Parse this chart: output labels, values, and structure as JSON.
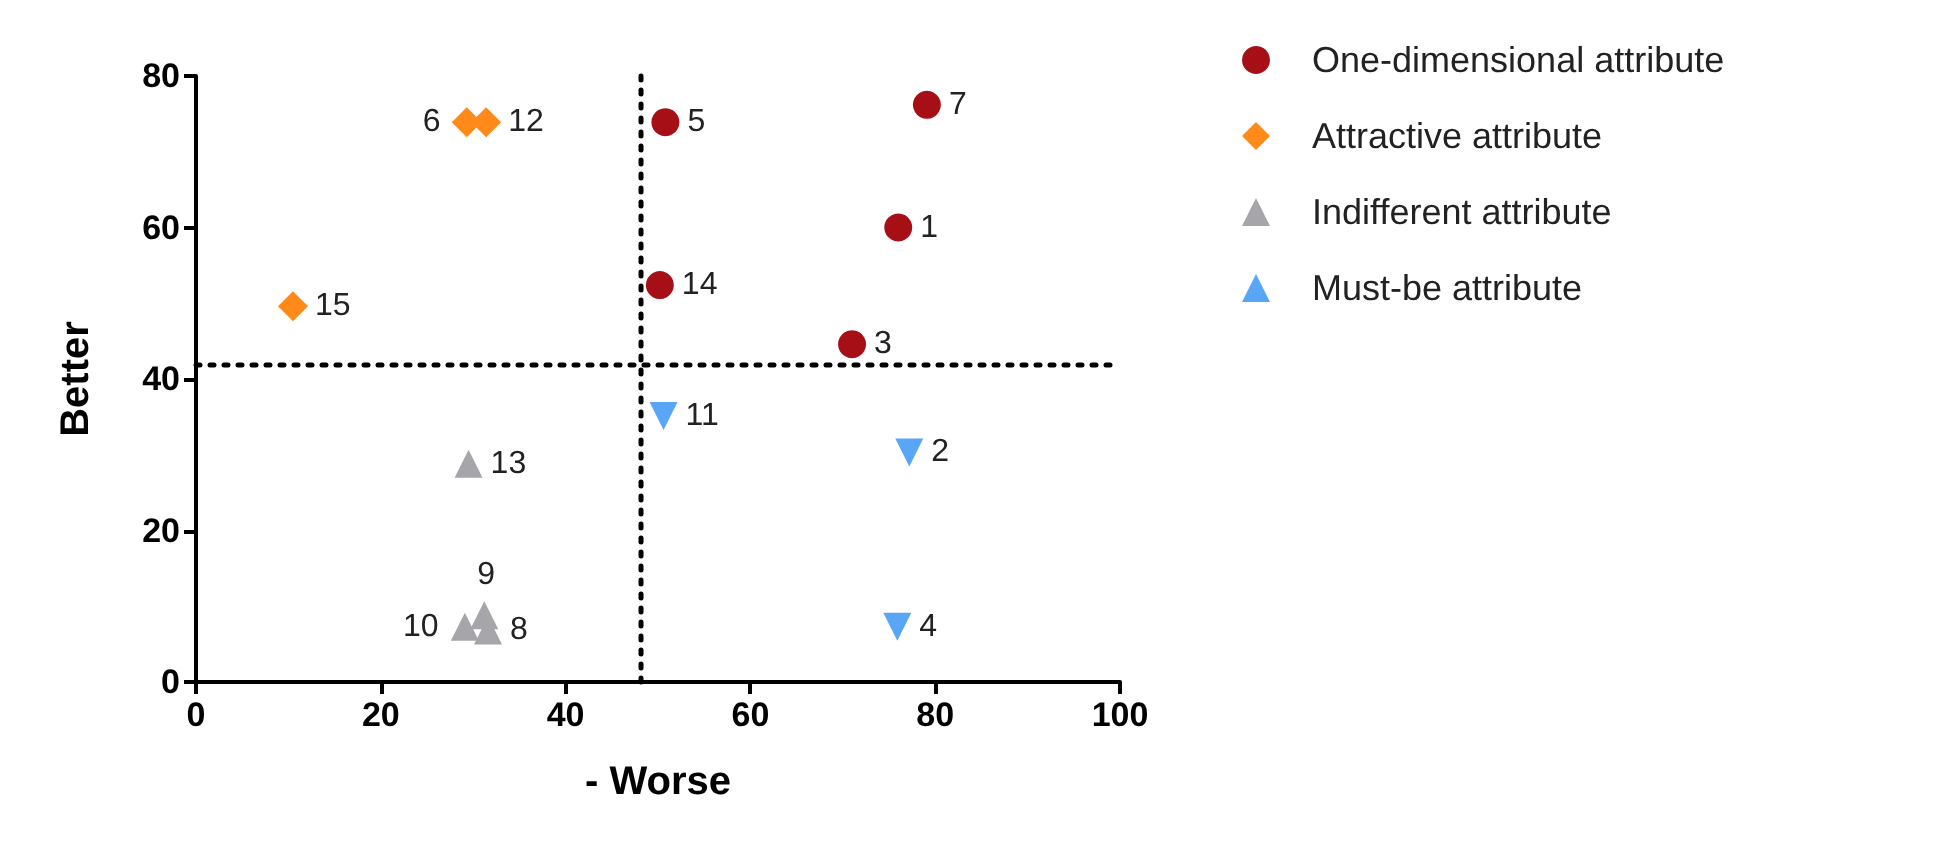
{
  "chart_data": {
    "type": "scatter",
    "xlabel": "- Worse",
    "ylabel": "Better",
    "xlim": [
      0,
      100
    ],
    "xticks": [
      0,
      20,
      40,
      60,
      80,
      100
    ],
    "ylim": [
      0,
      80
    ],
    "yticks": [
      0,
      20,
      40,
      60,
      80
    ],
    "grid": false,
    "legend": "top right",
    "series": [
      {
        "name": "One-dimensional attribute",
        "color": "#a50f15",
        "marker": "circle",
        "x": [
          76,
          71,
          50.8,
          79.1,
          50.2
        ],
        "values": [
          60,
          44.6,
          73.9,
          76.2,
          52.4
        ]
      },
      {
        "name": "Attractive attribute",
        "color": "#ff8a1a",
        "marker": "diamond",
        "x": [
          31.4,
          29.3,
          10.5
        ],
        "values": [
          73.9,
          73.9,
          49.6
        ]
      },
      {
        "name": "Indifferent attribute",
        "color": "#a6a6aa",
        "marker": "triangle",
        "x": [
          31.6,
          29.1,
          31.2,
          29.5
        ],
        "values": [
          6.8,
          7.3,
          8.8,
          28.8
        ]
      },
      {
        "name": "Must-be attribute",
        "color": "#58a6f5",
        "marker": "triangle-down",
        "x": [
          77.2,
          75.9,
          50.6
        ],
        "values": [
          30.3,
          7.3,
          35.1
        ]
      }
    ],
    "ref_lines": [
      {
        "axis": "x",
        "value": 48,
        "color": "#000000",
        "line_style": "dotted"
      },
      {
        "axis": "y",
        "value": 42,
        "color": "#000000",
        "line_style": "dotted"
      }
    ],
    "annotations": [
      {
        "text": "1",
        "x": 76,
        "y": 60
      },
      {
        "text": "3",
        "x": 71,
        "y": 44.6
      },
      {
        "text": "5",
        "x": 50.8,
        "y": 73.9
      },
      {
        "text": "7",
        "x": 79.1,
        "y": 76.2
      },
      {
        "text": "14",
        "x": 50.2,
        "y": 52.4
      },
      {
        "text": "12",
        "x": 31.4,
        "y": 73.9
      },
      {
        "text": "6",
        "x": 29.3,
        "y": 73.9
      },
      {
        "text": "15",
        "x": 10.5,
        "y": 49.6
      },
      {
        "text": "8",
        "x": 31.6,
        "y": 6.8
      },
      {
        "text": "10",
        "x": 29.1,
        "y": 7.3
      },
      {
        "text": "9",
        "x": 31.2,
        "y": 8.8
      },
      {
        "text": "13",
        "x": 29.5,
        "y": 28.8
      },
      {
        "text": "2",
        "x": 77.2,
        "y": 30.3
      },
      {
        "text": "4",
        "x": 75.9,
        "y": 7.3
      },
      {
        "text": "11",
        "x": 50.6,
        "y": 35.1
      }
    ]
  }
}
